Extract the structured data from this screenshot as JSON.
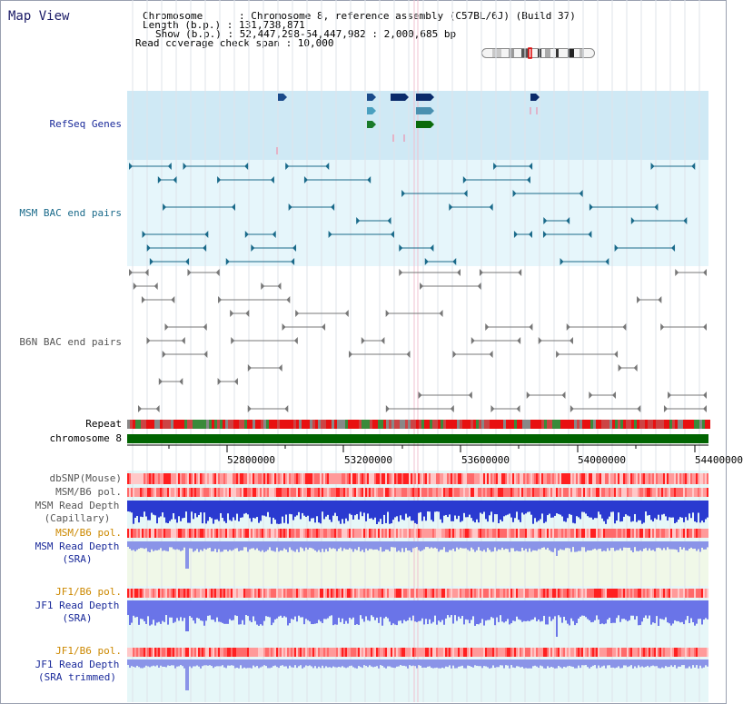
{
  "app_title": "Map View",
  "header": {
    "chromosome": "Chromosome      : Chromosome 8, reference assembly (C57BL/6J) (Build 37)",
    "length": "Length (b.p.) : 131,738,871",
    "show": "Show (b.p.) : 52,447,298-54,447,982 : 2,000,685 bp",
    "coverage": "Read coverage check span : 10,000"
  },
  "tracks": {
    "refseq": "RefSeq Genes",
    "msm_bac": "MSM BAC end pairs",
    "b6n_bac": "B6N BAC end pairs",
    "repeat": "Repeat",
    "chrom": "chromosome 8",
    "dbsnp": "dbSNP(Mouse)",
    "msm_b6_pol_1": "MSM/B6 pol.",
    "msm_read_depth_cap_1": "MSM Read Depth",
    "msm_read_depth_cap_2": "(Capillary)",
    "msm_b6_pol_2": "MSM/B6 pol.",
    "msm_read_depth_sra_1": "MSM Read Depth",
    "msm_read_depth_sra_2": "(SRA)",
    "jf1_b6_pol_1": "JF1/B6 pol.",
    "jf1_read_depth_sra_1": "JF1 Read Depth",
    "jf1_read_depth_sra_2": "(SRA)",
    "jf1_b6_pol_2": "JF1/B6 pol.",
    "jf1_read_depth_trim_1": "JF1 Read Depth",
    "jf1_read_depth_trim_2": "(SRA trimmed)"
  },
  "axis": {
    "ticks": [
      "52800000",
      "53200000",
      "53600000",
      "54000000",
      "54400000"
    ]
  },
  "colors": {
    "label_blue": "#1a2a9a",
    "label_teal": "#1a6a8a",
    "label_gray": "#555555",
    "label_orange": "#cc8800",
    "refseq_bg": "#cfe9f5",
    "bac_bg": "#e6f6fb",
    "chrom_green": "#006400"
  }
}
